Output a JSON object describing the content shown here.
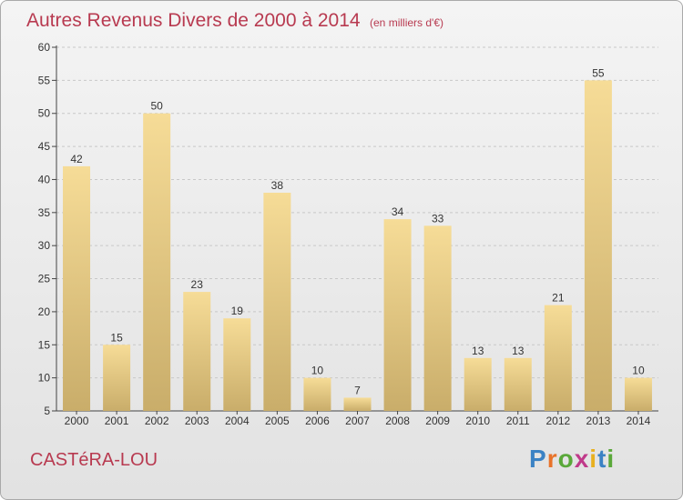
{
  "header": {
    "title": "Autres Revenus Divers de 2000 à 2014",
    "unit": "(en milliers d'€)"
  },
  "footer": {
    "location": "CASTéRA-LOU",
    "logo_text": "Proxiti",
    "logo_colors": [
      "#3b82c4",
      "#e8732a",
      "#5aa83a",
      "#c03a8a",
      "#e8b020",
      "#3b82c4",
      "#5aa83a"
    ]
  },
  "colors": {
    "title": "#b83a50",
    "bar_light": "#f6dc97",
    "bar_dark": "#c9ad6a",
    "grid": "#c8c8c8"
  },
  "chart_data": {
    "type": "bar",
    "categories": [
      "2000",
      "2001",
      "2002",
      "2003",
      "2004",
      "2005",
      "2006",
      "2007",
      "2008",
      "2009",
      "2010",
      "2011",
      "2012",
      "2013",
      "2014"
    ],
    "values": [
      42,
      15,
      50,
      23,
      19,
      38,
      10,
      7,
      34,
      33,
      13,
      13,
      21,
      55,
      10
    ],
    "ylim": [
      5,
      60
    ],
    "yticks": [
      5,
      10,
      15,
      20,
      25,
      30,
      35,
      40,
      45,
      50,
      55,
      60
    ],
    "grid": "horizontal dashed",
    "legend": "none"
  }
}
